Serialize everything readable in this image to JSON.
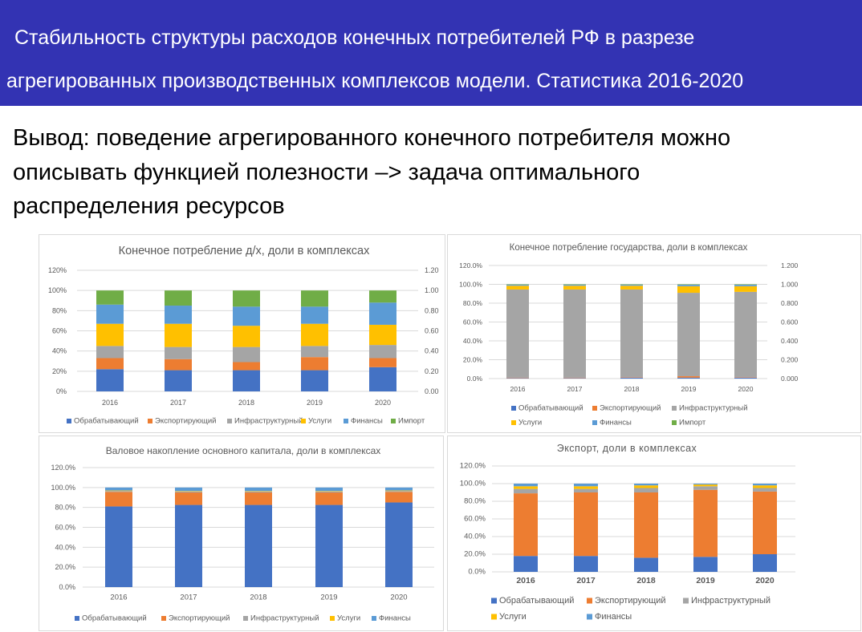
{
  "colors": {
    "header_bg": "#3333B3",
    "header_text": "#FFFFFF",
    "chart_text": "#595959",
    "gridline": "#D9D9D9"
  },
  "slide": {
    "title_lines": [
      "Стабильность структуры расходов конечных потребителей РФ в разрезе",
      "агрегированных производственных комплексов модели. Статистика 2016-2020"
    ],
    "body_lines": [
      "Вывод: поведение агрегированного конечного потребителя можно",
      "описывать функцией полезности –> задача оптимального",
      "распределения ресурсов"
    ]
  },
  "chart_data": [
    {
      "type": "bar",
      "stacked": true,
      "title": "Конечное потребление д/х, доли в комплексах",
      "categories": [
        "2016",
        "2017",
        "2018",
        "2019",
        "2020"
      ],
      "ylim": [
        0,
        120
      ],
      "y_ticks": [
        "120%",
        "100%",
        "80%",
        "60%",
        "40%",
        "20%",
        "0%"
      ],
      "y2lim": [
        0,
        1.2
      ],
      "y2_ticks": [
        "1.20",
        "1.00",
        "0.80",
        "0.60",
        "0.40",
        "0.20",
        "0.00"
      ],
      "grid": true,
      "legend": "bottom",
      "series": [
        {
          "name": "Обрабатывающий",
          "color": "#4472C4",
          "values": [
            22,
            21,
            21,
            21,
            24
          ]
        },
        {
          "name": "Экспортирующий",
          "color": "#ED7D31",
          "values": [
            11,
            11,
            8,
            13,
            9
          ]
        },
        {
          "name": "Инфраструктурный",
          "color": "#A5A5A5",
          "values": [
            12,
            12,
            15,
            11,
            13
          ]
        },
        {
          "name": "Услуги",
          "color": "#FFC000",
          "values": [
            22,
            23,
            21,
            22,
            20
          ]
        },
        {
          "name": "Финансы",
          "color": "#5B9BD5",
          "values": [
            19,
            18,
            19,
            17,
            22
          ]
        },
        {
          "name": "Импорт",
          "color": "#70AD47",
          "values": [
            14,
            15,
            16,
            16,
            12
          ]
        }
      ]
    },
    {
      "type": "bar",
      "stacked": true,
      "title": "Конечное потребление государства, доли в комплексах",
      "categories": [
        "2016",
        "2017",
        "2018",
        "2019",
        "2020"
      ],
      "ylim": [
        0,
        120
      ],
      "y_ticks": [
        "120.0%",
        "100.0%",
        "80.0%",
        "60.0%",
        "40.0%",
        "20.0%",
        "0.0%"
      ],
      "y2lim": [
        0,
        1.2
      ],
      "y2_ticks": [
        "1.200",
        "1.000",
        "0.800",
        "0.600",
        "0.400",
        "0.200",
        "0.000"
      ],
      "grid": true,
      "legend": "bottom",
      "series": [
        {
          "name": "Обрабатывающий",
          "color": "#4472C4",
          "values": [
            0.5,
            0.5,
            1,
            1,
            1
          ]
        },
        {
          "name": "Экспортирующий",
          "color": "#ED7D31",
          "values": [
            0.5,
            0.5,
            0.5,
            1.5,
            0.5
          ]
        },
        {
          "name": "Инфраструктурный",
          "color": "#A5A5A5",
          "values": [
            93.5,
            93.5,
            93,
            88.5,
            90.5
          ]
        },
        {
          "name": "Услуги",
          "color": "#FFC000",
          "values": [
            4,
            4,
            4,
            7,
            6
          ]
        },
        {
          "name": "Финансы",
          "color": "#5B9BD5",
          "values": [
            1,
            1,
            1,
            1.5,
            1.5
          ]
        },
        {
          "name": "Импорт",
          "color": "#70AD47",
          "values": [
            0.5,
            0.5,
            0.5,
            0.5,
            0.5
          ]
        }
      ]
    },
    {
      "type": "bar",
      "stacked": true,
      "title": "Валовое накопление основного капитала, доли в комплексах",
      "categories": [
        "2016",
        "2017",
        "2018",
        "2019",
        "2020"
      ],
      "ylim": [
        0,
        120
      ],
      "y_ticks": [
        "120.0%",
        "100.0%",
        "80.0%",
        "60.0%",
        "40.0%",
        "20.0%",
        "0.0%"
      ],
      "grid": true,
      "legend": "bottom",
      "series": [
        {
          "name": "Обрабатывающий",
          "color": "#4472C4",
          "values": [
            81,
            82.5,
            82.5,
            82.5,
            85
          ]
        },
        {
          "name": "Экспортирующий",
          "color": "#ED7D31",
          "values": [
            14.5,
            12.5,
            12.5,
            12.5,
            10.5
          ]
        },
        {
          "name": "Инфраструктурный",
          "color": "#A5A5A5",
          "values": [
            1,
            1,
            1,
            1,
            1
          ]
        },
        {
          "name": "Услуги",
          "color": "#FFC000",
          "values": [
            0.5,
            0.5,
            0.5,
            0.5,
            0.5
          ]
        },
        {
          "name": "Финансы",
          "color": "#5B9BD5",
          "values": [
            3,
            3.5,
            3.5,
            3.5,
            3
          ]
        }
      ]
    },
    {
      "type": "bar",
      "stacked": true,
      "title": "Экспорт, доли в комплексах",
      "categories": [
        "2016",
        "2017",
        "2018",
        "2019",
        "2020"
      ],
      "ylim": [
        0,
        120
      ],
      "y_ticks": [
        "120.0%",
        "100.0%",
        "80.0%",
        "60.0%",
        "40.0%",
        "20.0%",
        "0.0%"
      ],
      "grid": true,
      "legend": "bottom",
      "series": [
        {
          "name": "Обрабатывающий",
          "color": "#4472C4",
          "values": [
            18,
            18,
            16,
            17,
            20
          ]
        },
        {
          "name": "Экспортирующий",
          "color": "#ED7D31",
          "values": [
            71,
            72,
            74,
            76,
            71
          ]
        },
        {
          "name": "Инфраструктурный",
          "color": "#A5A5A5",
          "values": [
            5,
            4,
            5,
            4,
            4
          ]
        },
        {
          "name": "Услуги",
          "color": "#FFC000",
          "values": [
            3,
            3,
            3,
            2,
            3
          ]
        },
        {
          "name": "Финансы",
          "color": "#5B9BD5",
          "values": [
            3,
            3,
            2,
            1,
            2
          ]
        }
      ]
    }
  ]
}
